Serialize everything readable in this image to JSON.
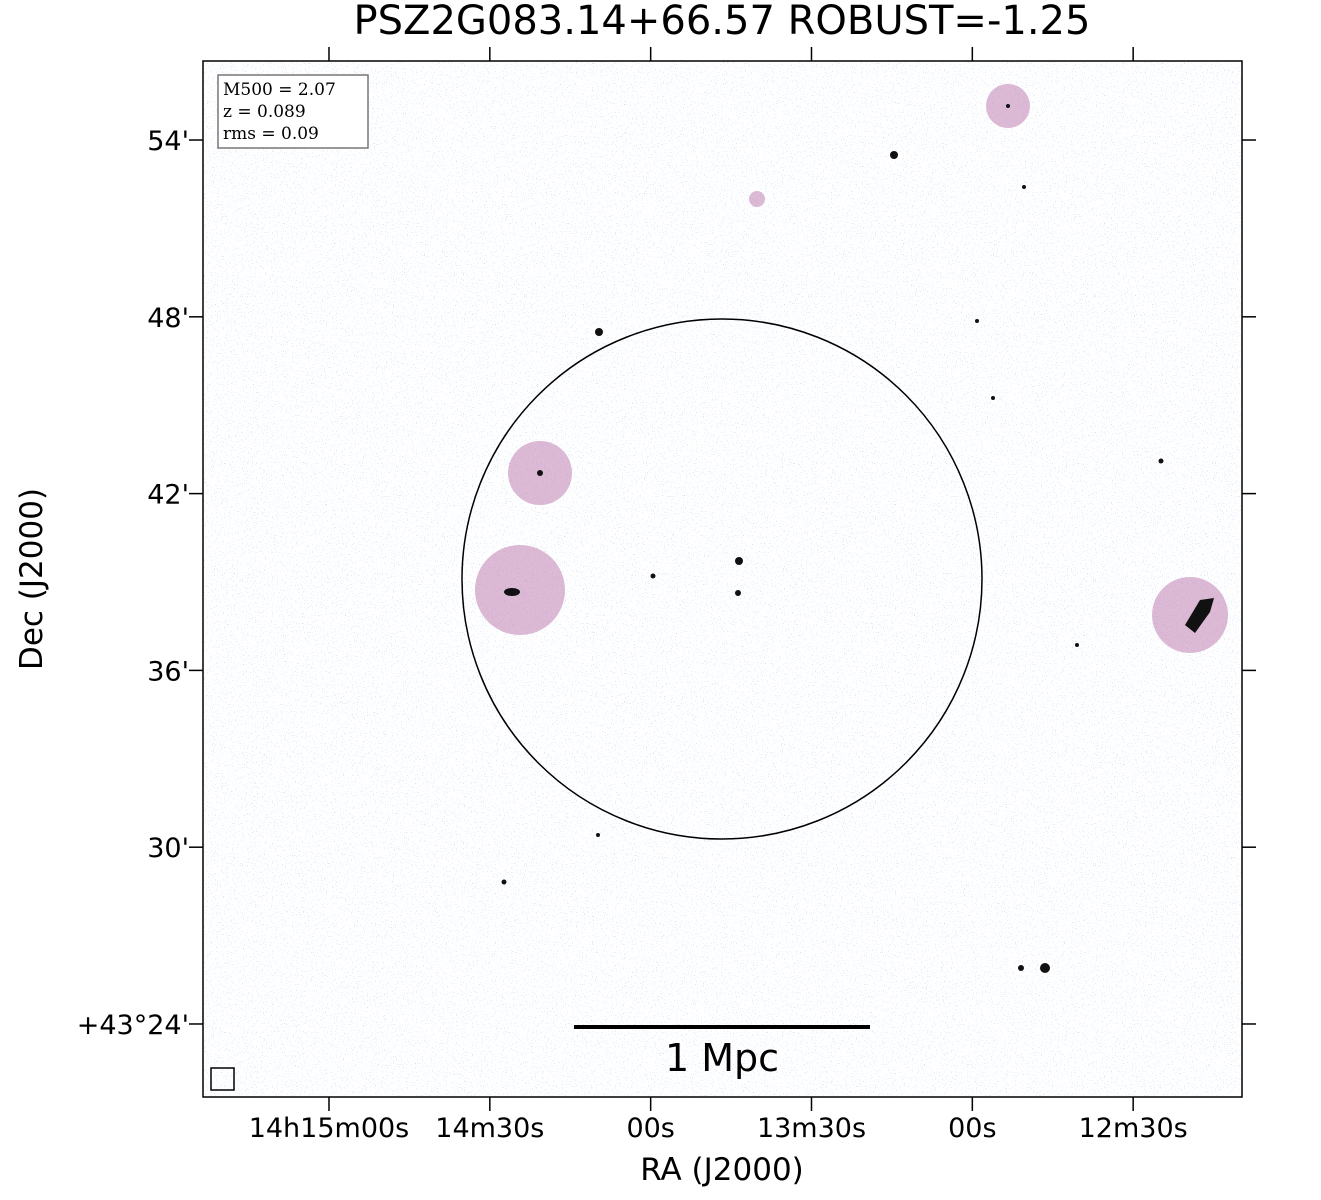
{
  "chart_data": {
    "type": "image",
    "title": "PSZ2G083.14+66.57 ROBUST=-1.25",
    "xlabel": "RA (J2000)",
    "ylabel": "Dec (J2000)",
    "annotation": [
      "M500 = 2.07",
      "z = 0.089",
      "rms = 0.09"
    ],
    "scalebar_label": "1 Mpc",
    "xlim": [
      51323.5,
      51129.7
    ],
    "xticks": [
      {
        "value": 51300,
        "label": "14h15m00s"
      },
      {
        "value": 51270,
        "label": "14m30s"
      },
      {
        "value": 51240,
        "label": "00s"
      },
      {
        "value": 51210,
        "label": "13m30s"
      },
      {
        "value": 51180,
        "label": "00s"
      },
      {
        "value": 51150,
        "label": "12m30s"
      }
    ],
    "ylim": [
      43.3587,
      43.9447
    ],
    "yticks": [
      {
        "value": 43.4,
        "label": "+43°24'"
      },
      {
        "value": 43.5,
        "label": "30'"
      },
      {
        "value": 43.6,
        "label": "36'"
      },
      {
        "value": 43.7,
        "label": "42'"
      },
      {
        "value": 43.8,
        "label": "48'"
      },
      {
        "value": 43.9,
        "label": "54'"
      }
    ]
  }
}
